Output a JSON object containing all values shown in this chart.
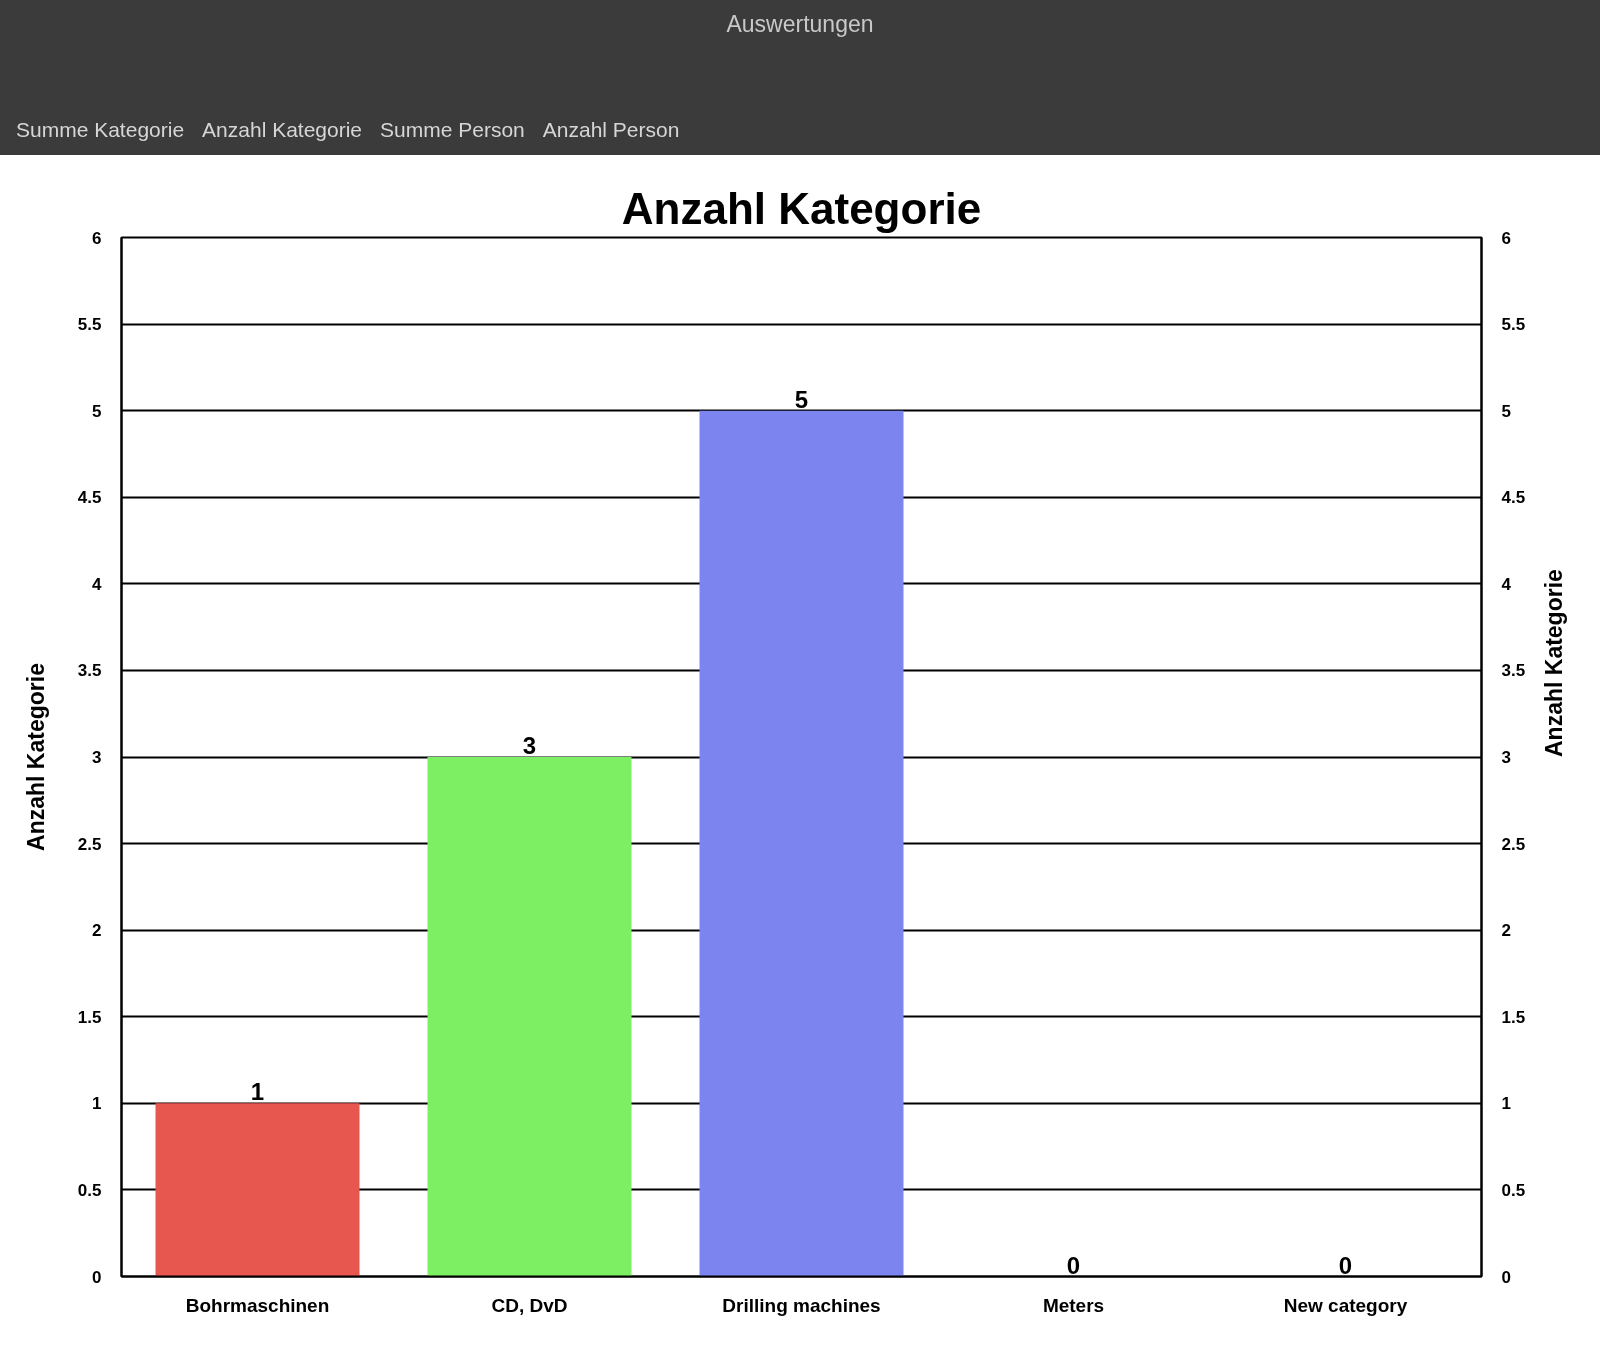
{
  "chart_data": {
    "type": "bar",
    "title": "Anzahl Kategorie",
    "annotations": [
      "Auswertungen",
      "Summe Kategorie",
      "Anzahl Kategorie",
      "Summe Person",
      "Anzahl Person"
    ],
    "categories": [
      "Bohrmaschinen",
      "CD, DvD",
      "Drilling machines",
      "Meters",
      "New category"
    ],
    "values": [
      1,
      3,
      5,
      0,
      0
    ],
    "colors": [
      "#e8574f",
      "#7cf062",
      "#7c84f0",
      null,
      null
    ],
    "ylabel": "Anzahl Kategorie",
    "y2label": "Anzahl Kategorie",
    "ylim": [
      0,
      6
    ],
    "yticks": [
      0,
      0.5,
      1,
      1.5,
      2,
      2.5,
      3,
      3.5,
      4,
      4.5,
      5,
      5.5,
      6
    ],
    "y2lim": [
      0,
      6
    ],
    "y2ticks": [
      0,
      0.5,
      1,
      1.5,
      2,
      2.5,
      3,
      3.5,
      4,
      4.5,
      5,
      5.5,
      6
    ],
    "grid": "y",
    "data_labels": true
  }
}
